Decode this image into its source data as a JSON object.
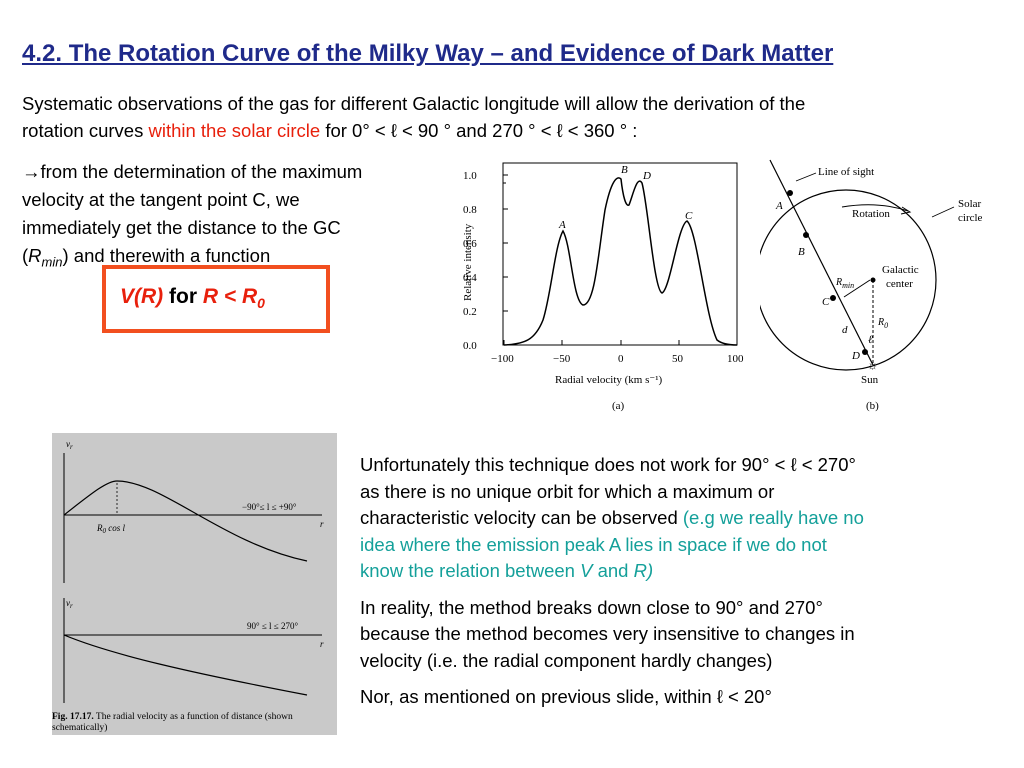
{
  "title": "4.2. The Rotation Curve of the Milky Way – and Evidence of Dark Matter",
  "intro": {
    "p1": "Systematic observations of the gas for different Galactic longitude will allow the derivation of the",
    "p2a": "rotation curves ",
    "p2b": "within the solar circle",
    "p2c": " for 0° < ℓ  < 90 ° and 270 ° < ℓ  < 360 ° :"
  },
  "arrow_text": {
    "arrow": "→",
    "l1": "from the determination of the maximum",
    "l2": "velocity at the tangent point C, we",
    "l3": "immediately get the distance to the GC",
    "l4a": "(",
    "l4b": "R",
    "l4c": "min",
    "l4d": ") and therewith a function"
  },
  "box": {
    "a": "V(R)",
    "b": " for ",
    "c": "R < R",
    "d": "0"
  },
  "right_text": {
    "p1_l1": "Unfortunately this technique does not work for 90° < ℓ < 270°",
    "p1_l2": "as there is no unique orbit for which a maximum or",
    "p1_l3a": "characteristic velocity can be observed ",
    "p1_l3b": "(e.g we really have no",
    "p1_l4": "idea where the emission peak A  lies in space if we do not",
    "p1_l5a": "know the relation between ",
    "p1_l5b": "V",
    "p1_l5c": " and ",
    "p1_l5d": "R)",
    "p2_l1": "In reality, the method breaks down close to 90° and 270°",
    "p2_l2": "because the method becomes very insensitive to changes in",
    "p2_l3": "velocity (i.e. the radial component hardly changes)",
    "p3": "Nor, as mentioned on previous slide, within ℓ < 20°"
  },
  "fig_a": {
    "ylabel": "Relative intensity",
    "xlabel": "Radial velocity (km s⁻¹)",
    "caption": "(a)",
    "yticks": [
      "1.0",
      "0.8",
      "0.6",
      "0.4",
      "0.2",
      "0.0"
    ],
    "xticks": [
      "−100",
      "−50",
      "0",
      "50",
      "100"
    ],
    "peaks": [
      "A",
      "B",
      "D",
      "C"
    ]
  },
  "fig_b": {
    "line_of_sight": "Line of sight",
    "rotation": "Rotation",
    "solar_circle_1": "Solar",
    "solar_circle_2": "circle",
    "galactic_1": "Galactic",
    "galactic_2": "center",
    "rmin": "R",
    "rmin_sub": "min",
    "r0": "R",
    "r0_sub": "0",
    "d": "d",
    "ell": "ℓ",
    "sun": "Sun",
    "caption": "(b)",
    "points": [
      "A",
      "B",
      "C",
      "D"
    ]
  },
  "scan_fig": {
    "vr": "v",
    "vr_sub": "r",
    "range1": "−90°≤  l  ≤  +90°",
    "r0cos": "R",
    "r0cos_sub": "0",
    "r0cos_b": " cos l",
    "r_axis": "r",
    "range2": "90°  ≤  l  ≤  270°",
    "caption_bold": "Fig. 17.17.",
    "caption1": " The radial velocity as a function of distance (shown",
    "caption2": "schematically)"
  }
}
